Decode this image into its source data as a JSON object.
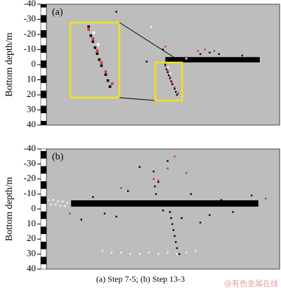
{
  "chart_data": [
    {
      "type": "scatter",
      "label": "(a)",
      "y_label": "Bottom depth/m",
      "xlim": [
        0,
        100
      ],
      "ylim": [
        40,
        -40
      ],
      "yticks": [
        -40,
        -30,
        -20,
        -10,
        0,
        10,
        20,
        30,
        40
      ],
      "blocks": [
        {
          "x": [
            51,
            91.5
          ],
          "y": [
            -5,
            -1.5
          ],
          "color": "#000000"
        }
      ],
      "series": [
        {
          "color": "#000000",
          "x": [
            51,
            51.5,
            52,
            52.5,
            53,
            53.5,
            54,
            55,
            55.5,
            56,
            66,
            70,
            84,
            88,
            43,
            50,
            30,
            74,
            62
          ],
          "values": [
            0,
            3,
            5,
            7,
            9,
            11,
            13,
            16,
            18,
            20,
            -7,
            -8,
            -6,
            -2,
            -2,
            -10,
            -35,
            -7,
            -3
          ]
        },
        {
          "color": "#e03030",
          "x": [
            51,
            52,
            53,
            54,
            55,
            56.5,
            65,
            68,
            72,
            51
          ],
          "values": [
            1,
            4,
            8,
            12,
            15,
            19,
            -9,
            -10,
            -9,
            -12
          ]
        },
        {
          "color": "#ffffff",
          "x": [
            52.2,
            53.2,
            60,
            45
          ],
          "values": [
            2,
            6,
            -4,
            -25
          ]
        }
      ]
    },
    {
      "type": "scatter",
      "label": "(b)",
      "y_label": "Bottom depth/m",
      "xlim": [
        0,
        100
      ],
      "ylim": [
        40,
        -40
      ],
      "yticks": [
        -40,
        -30,
        -20,
        -10,
        0,
        10,
        20,
        30,
        40
      ],
      "blocks": [
        {
          "x": [
            10.6,
            90.9
          ],
          "y": [
            -5.8,
            -1.6
          ],
          "color": "#000000"
        }
      ],
      "series": [
        {
          "color": "#000000",
          "x": [
            46,
            46,
            46.5,
            47,
            46,
            53,
            53.5,
            54,
            54.5,
            55,
            55.5,
            56,
            57,
            20,
            25,
            30,
            35,
            62,
            70,
            75,
            80,
            15,
            88,
            40,
            52,
            58,
            66,
            48,
            50
          ],
          "values": [
            -25,
            -20,
            -15,
            -10,
            -5,
            2,
            6,
            10,
            14,
            18,
            22,
            26,
            30,
            -8,
            3,
            5,
            -12,
            -10,
            4,
            -6,
            2,
            7,
            -9,
            -28,
            -32,
            6,
            9,
            -18,
            1
          ]
        },
        {
          "color": "#e03030",
          "x": [
            52,
            55,
            46,
            48,
            10,
            94,
            60,
            32
          ],
          "values": [
            -27,
            -35,
            -20,
            -19,
            3,
            -7,
            -24,
            -14
          ]
        },
        {
          "color": "#f4f4f4",
          "x": [
            1,
            3,
            5,
            7,
            9,
            2,
            4,
            6,
            8,
            28,
            32,
            36,
            40,
            44,
            48,
            52,
            56,
            60,
            24,
            64
          ],
          "values": [
            -6,
            -6,
            -5,
            -5,
            -4,
            -3,
            -3,
            -2,
            -2,
            29,
            29,
            30,
            30,
            29,
            30,
            29,
            30,
            29,
            28,
            28
          ]
        }
      ]
    }
  ],
  "caption": "(a) Step 7-5; (b) Step 13-3",
  "watermark": "@有色金属在线"
}
